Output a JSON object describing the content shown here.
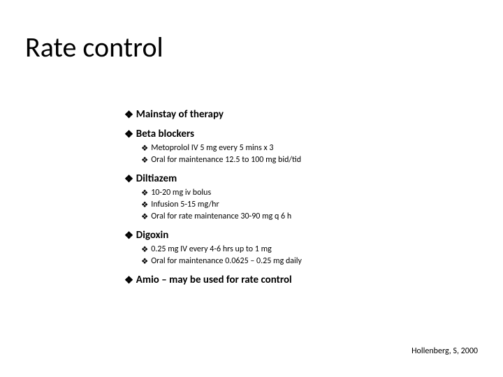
{
  "title": "Rate control",
  "bullet_glyph": "❖",
  "items": {
    "mainstay": "Mainstay of therapy",
    "beta": {
      "label": "Beta blockers",
      "sub1": "Metoprolol IV 5 mg every 5 mins x 3",
      "sub2": "Oral for maintenance 12.5 to 100 mg bid/tid"
    },
    "dilt": {
      "label": "Diltiazem",
      "sub1": "10-20 mg iv bolus",
      "sub2": "Infusion 5-15 mg/hr",
      "sub3": "Oral for rate maintenance 30-90 mg q 6 h"
    },
    "dig": {
      "label": "Digoxin",
      "sub1": "0.25 mg IV every 4-6 hrs up to 1 mg",
      "sub2": "Oral for maintenance 0.0625 – 0.25 mg daily"
    },
    "amio": "Amio – may be used for rate control"
  },
  "citation": "Hollenberg, S, 2000"
}
